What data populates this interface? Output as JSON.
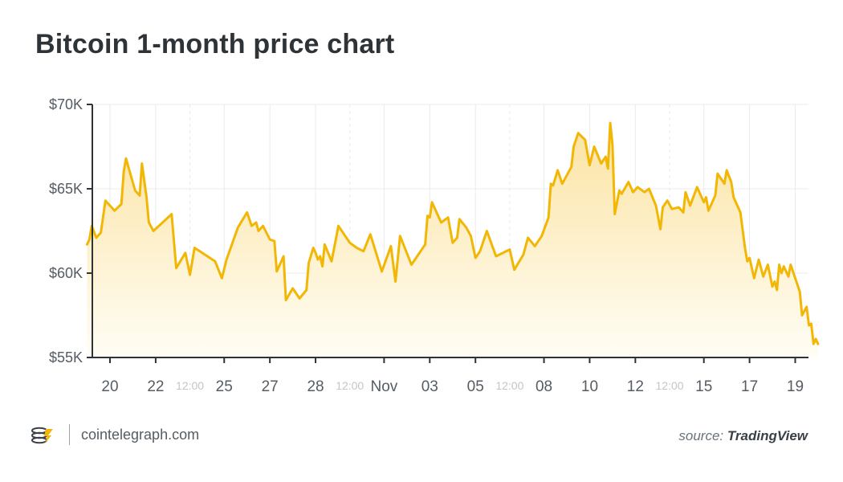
{
  "header": {
    "title": "Bitcoin 1-month price chart"
  },
  "footer": {
    "brand_name": "cointelegraph.com",
    "brand_icon": "cointelegraph-logo-icon",
    "source_prefix": "source: ",
    "source_name": "TradingView"
  },
  "colors": {
    "line": "#f2b705",
    "fill_top": "#fbe3a2",
    "fill_bottom": "#fffdf5",
    "grid": "#ebebeb",
    "axis": "#2e3338",
    "tick_text": "#555c63",
    "minor_tick_text": "#c2c6ca"
  },
  "chart_data": {
    "type": "area",
    "title": "Bitcoin 1-month price chart",
    "xlabel": "",
    "ylabel": "",
    "ylim": [
      55000,
      70000
    ],
    "y_ticks": [
      {
        "value": 70000,
        "label": "$70K"
      },
      {
        "value": 65000,
        "label": "$65K"
      },
      {
        "value": 60000,
        "label": "$60K"
      },
      {
        "value": 55000,
        "label": "$55K"
      }
    ],
    "xlim": [
      0,
      31.4
    ],
    "x_ticks": [
      {
        "x": 1,
        "label": "20",
        "minor": false
      },
      {
        "x": 3,
        "label": "22",
        "minor": false
      },
      {
        "x": 4.5,
        "label": "12:00",
        "minor": true
      },
      {
        "x": 6,
        "label": "25",
        "minor": false
      },
      {
        "x": 8,
        "label": "27",
        "minor": false
      },
      {
        "x": 10,
        "label": "28",
        "minor": false
      },
      {
        "x": 11.5,
        "label": "12:00",
        "minor": true
      },
      {
        "x": 13,
        "label": "Nov",
        "minor": false
      },
      {
        "x": 15,
        "label": "03",
        "minor": false
      },
      {
        "x": 17,
        "label": "05",
        "minor": false
      },
      {
        "x": 18.5,
        "label": "12:00",
        "minor": true
      },
      {
        "x": 20,
        "label": "08",
        "minor": false
      },
      {
        "x": 22,
        "label": "10",
        "minor": false
      },
      {
        "x": 24,
        "label": "12",
        "minor": false
      },
      {
        "x": 25.5,
        "label": "12:00",
        "minor": true
      },
      {
        "x": 27,
        "label": "15",
        "minor": false
      },
      {
        "x": 29,
        "label": "17",
        "minor": false
      },
      {
        "x": 31,
        "label": "19",
        "minor": false
      }
    ],
    "grid": true,
    "legend": "none",
    "series": [
      {
        "values": [
          [
            0,
            61700
          ],
          [
            0.1,
            62000
          ],
          [
            0.2,
            62800
          ],
          [
            0.4,
            62100
          ],
          [
            0.6,
            62400
          ],
          [
            0.8,
            64300
          ],
          [
            1.2,
            63700
          ],
          [
            1.5,
            64100
          ],
          [
            1.6,
            66000
          ],
          [
            1.7,
            66800
          ],
          [
            2.1,
            64900
          ],
          [
            2.3,
            64600
          ],
          [
            2.4,
            66500
          ],
          [
            2.6,
            64500
          ],
          [
            2.7,
            63000
          ],
          [
            2.9,
            62500
          ],
          [
            3.7,
            63500
          ],
          [
            3.9,
            60300
          ],
          [
            4.3,
            61200
          ],
          [
            4.5,
            59900
          ],
          [
            4.7,
            61500
          ],
          [
            5.6,
            60700
          ],
          [
            5.9,
            59700
          ],
          [
            6.1,
            60800
          ],
          [
            6.6,
            62700
          ],
          [
            7.0,
            63600
          ],
          [
            7.2,
            62800
          ],
          [
            7.4,
            63000
          ],
          [
            7.5,
            62500
          ],
          [
            7.7,
            62800
          ],
          [
            8.0,
            62000
          ],
          [
            8.2,
            61900
          ],
          [
            8.3,
            60100
          ],
          [
            8.6,
            61000
          ],
          [
            8.7,
            58400
          ],
          [
            9.0,
            59100
          ],
          [
            9.3,
            58500
          ],
          [
            9.6,
            59000
          ],
          [
            9.7,
            60600
          ],
          [
            9.9,
            61500
          ],
          [
            10.0,
            61200
          ],
          [
            10.1,
            60800
          ],
          [
            10.2,
            61000
          ],
          [
            10.3,
            60400
          ],
          [
            10.4,
            61700
          ],
          [
            10.7,
            60700
          ],
          [
            11.0,
            62800
          ],
          [
            11.5,
            61800
          ],
          [
            11.8,
            61500
          ],
          [
            12.1,
            61300
          ],
          [
            12.4,
            62300
          ],
          [
            12.9,
            60100
          ],
          [
            13.3,
            61600
          ],
          [
            13.5,
            59500
          ],
          [
            13.7,
            62200
          ],
          [
            14.2,
            60500
          ],
          [
            14.8,
            61700
          ],
          [
            14.9,
            63400
          ],
          [
            15.0,
            63300
          ],
          [
            15.1,
            64200
          ],
          [
            15.5,
            63000
          ],
          [
            15.8,
            63300
          ],
          [
            16.0,
            61800
          ],
          [
            16.2,
            62100
          ],
          [
            16.3,
            63200
          ],
          [
            16.6,
            62700
          ],
          [
            16.8,
            62200
          ],
          [
            17.0,
            60900
          ],
          [
            17.2,
            61300
          ],
          [
            17.5,
            62500
          ],
          [
            17.9,
            61000
          ],
          [
            18.5,
            61400
          ],
          [
            18.7,
            60200
          ],
          [
            19.1,
            61100
          ],
          [
            19.3,
            62100
          ],
          [
            19.6,
            61600
          ],
          [
            19.9,
            62200
          ],
          [
            20.2,
            63300
          ],
          [
            20.3,
            65300
          ],
          [
            20.4,
            65200
          ],
          [
            20.6,
            66100
          ],
          [
            20.8,
            65300
          ],
          [
            21.2,
            66300
          ],
          [
            21.3,
            67500
          ],
          [
            21.5,
            68300
          ],
          [
            21.8,
            67900
          ],
          [
            22.0,
            66400
          ],
          [
            22.2,
            67500
          ],
          [
            22.5,
            66500
          ],
          [
            22.7,
            66900
          ],
          [
            22.8,
            66200
          ],
          [
            22.9,
            68900
          ],
          [
            23.0,
            67600
          ],
          [
            23.1,
            63500
          ],
          [
            23.3,
            64900
          ],
          [
            23.4,
            64700
          ],
          [
            23.7,
            65400
          ],
          [
            23.9,
            64800
          ],
          [
            24.1,
            65100
          ],
          [
            24.4,
            64800
          ],
          [
            24.6,
            65000
          ],
          [
            24.9,
            64000
          ],
          [
            25.1,
            62600
          ],
          [
            25.2,
            63900
          ],
          [
            25.4,
            64300
          ],
          [
            25.6,
            63800
          ],
          [
            25.9,
            63900
          ],
          [
            26.1,
            63600
          ],
          [
            26.2,
            64800
          ],
          [
            26.4,
            64000
          ],
          [
            26.7,
            65100
          ],
          [
            27.0,
            64200
          ],
          [
            27.1,
            64500
          ],
          [
            27.2,
            63700
          ],
          [
            27.5,
            64600
          ],
          [
            27.6,
            65900
          ],
          [
            27.9,
            65300
          ],
          [
            28.0,
            66100
          ],
          [
            28.2,
            65400
          ],
          [
            28.3,
            64500
          ],
          [
            28.6,
            63600
          ],
          [
            28.8,
            61500
          ],
          [
            28.9,
            60700
          ],
          [
            29.0,
            60900
          ],
          [
            29.2,
            59700
          ],
          [
            29.4,
            60800
          ],
          [
            29.6,
            59800
          ],
          [
            29.8,
            60500
          ],
          [
            30.0,
            59200
          ],
          [
            30.1,
            59500
          ],
          [
            30.2,
            59000
          ],
          [
            30.3,
            60500
          ],
          [
            30.4,
            60000
          ],
          [
            30.5,
            60400
          ],
          [
            30.7,
            59800
          ],
          [
            30.8,
            60500
          ],
          [
            31.2,
            58900
          ],
          [
            31.3,
            57500
          ],
          [
            31.5,
            58000
          ],
          [
            31.6,
            56900
          ],
          [
            31.7,
            57000
          ],
          [
            31.8,
            55800
          ],
          [
            31.9,
            56100
          ],
          [
            32.0,
            55800
          ]
        ]
      }
    ]
  }
}
